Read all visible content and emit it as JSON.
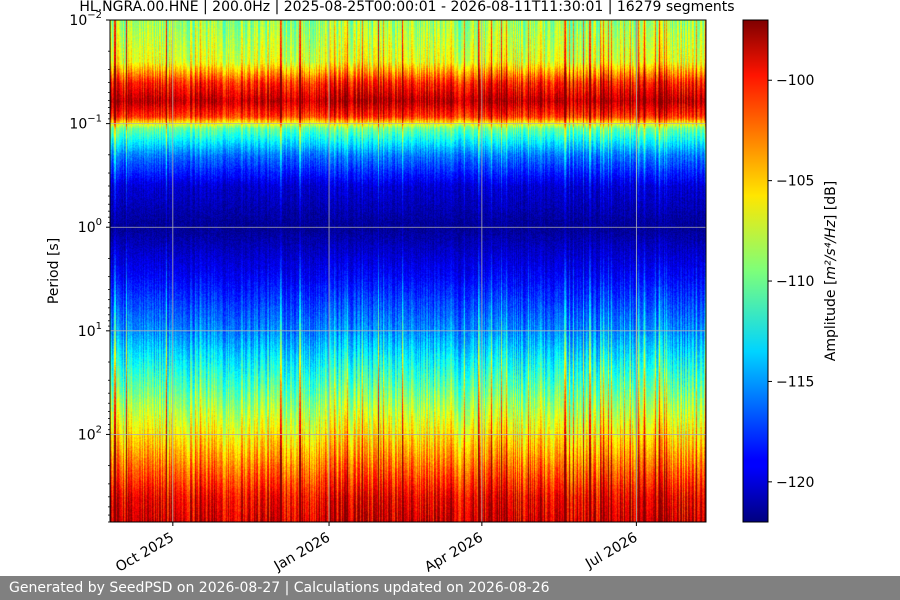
{
  "chart_data": {
    "type": "heatmap",
    "title": "HL.NGRA.00.HNE | 200.0Hz | 2025-08-25T00:00:01 - 2026-08-11T11:30:01 | 16279 segments",
    "xlabel": "",
    "ylabel": "Period [s]",
    "x_range": [
      "2025-08-25",
      "2026-08-11"
    ],
    "y_scale": "log",
    "y_range_seconds": [
      0.01,
      700
    ],
    "y_invert": true,
    "x_ticks": [
      {
        "date": "2025-10-01",
        "label": "Oct 2025"
      },
      {
        "date": "2026-01-01",
        "label": "Jan 2026"
      },
      {
        "date": "2026-04-01",
        "label": "Apr 2026"
      },
      {
        "date": "2026-07-01",
        "label": "Jul 2026"
      }
    ],
    "y_ticks": [
      {
        "period": 0.01,
        "base": "10",
        "exp": "−2"
      },
      {
        "period": 0.1,
        "base": "10",
        "exp": "−1"
      },
      {
        "period": 1,
        "base": "10",
        "exp": "0"
      },
      {
        "period": 10,
        "base": "10",
        "exp": "1"
      },
      {
        "period": 100,
        "base": "10",
        "exp": "2"
      }
    ],
    "grid": true,
    "colorbar": {
      "label_prefix": "Amplitude [",
      "label_unit": "m²/s⁴/Hz",
      "label_suffix": "] [dB]",
      "range_db": [
        -122,
        -97
      ],
      "ticks": [
        -100,
        -105,
        -110,
        -115,
        -120
      ],
      "tick_labels": [
        "−100",
        "−105",
        "−110",
        "−115",
        "−120"
      ],
      "colormap": "jet"
    },
    "period_profile_db": [
      {
        "period": 0.01,
        "db": -109
      },
      {
        "period": 0.025,
        "db": -107
      },
      {
        "period": 0.04,
        "db": -101
      },
      {
        "period": 0.06,
        "db": -98.5
      },
      {
        "period": 0.085,
        "db": -101.5
      },
      {
        "period": 0.11,
        "db": -110
      },
      {
        "period": 0.2,
        "db": -116
      },
      {
        "period": 0.4,
        "db": -120
      },
      {
        "period": 1,
        "db": -121.5
      },
      {
        "period": 3,
        "db": -119
      },
      {
        "period": 10,
        "db": -115.5
      },
      {
        "period": 30,
        "db": -111
      },
      {
        "period": 100,
        "db": -106
      },
      {
        "period": 200,
        "db": -103
      },
      {
        "period": 400,
        "db": -100
      },
      {
        "period": 700,
        "db": -99
      }
    ]
  },
  "footer": {
    "text": "Generated by SeedPSD on 2026-08-27 | Calculations updated on 2026-08-26"
  }
}
